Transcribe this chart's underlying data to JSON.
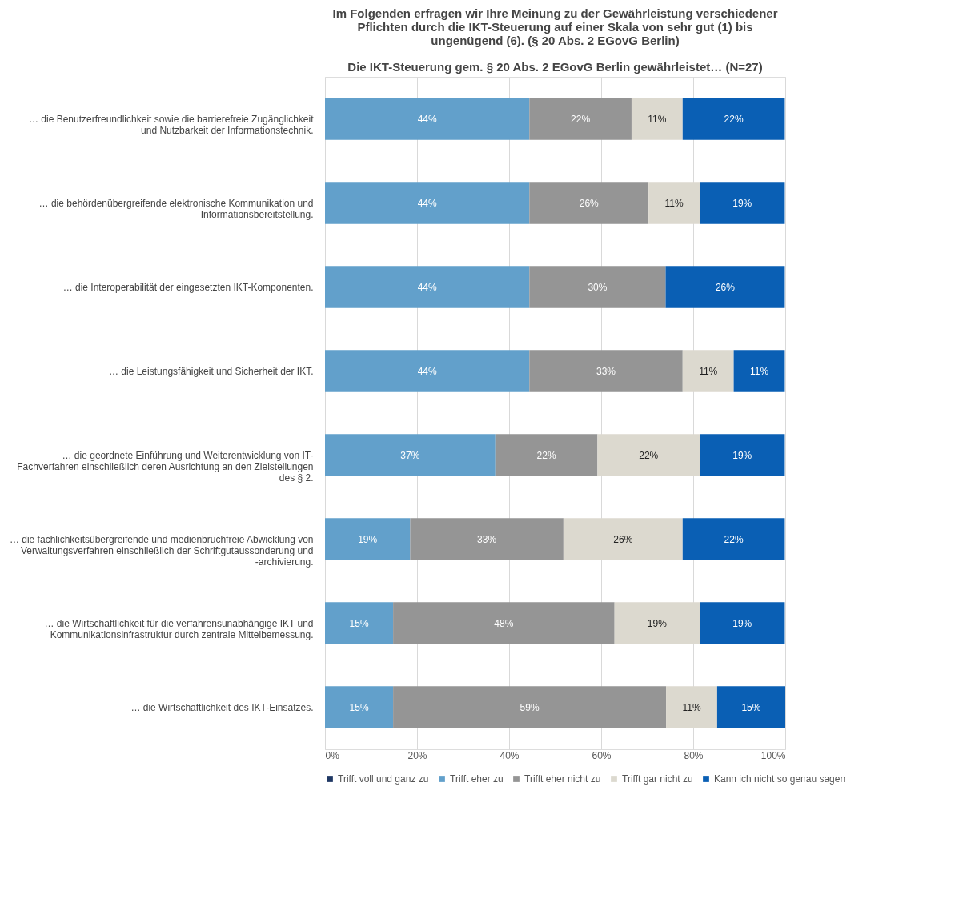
{
  "chart_data": {
    "type": "bar",
    "orientation": "horizontal",
    "stacked": true,
    "title": "Im Folgenden erfragen wir Ihre Meinung zu der Gewährleistung verschiedener Pflichten durch die IKT-Steuerung auf einer Skala von sehr gut (1) bis ungenügend (6). (§ 20 Abs. 2 EGovG Berlin)",
    "subtitle": "Die IKT-Steuerung gem. § 20 Abs. 2 EGovG Berlin gewährleistet… (N=27)",
    "categories": [
      "… die Benutzerfreundlichkeit sowie die barrierefreie Zugänglichkeit und Nutzbarkeit der Informationstechnik.",
      "… die behördenübergreifende elektronische Kommunikation und Informationsbereitstellung.",
      "… die Interoperabilität der eingesetzten IKT-Komponenten.",
      "… die Leistungsfähigkeit und Sicherheit der IKT.",
      "… die geordnete Einführung und Weiterentwicklung von IT-Fachverfahren einschließlich deren Ausrichtung an den Zielstellungen des § 2.",
      "… die fachlichkeitsübergreifende und medienbruchfreie Abwicklung von Verwaltungsverfahren einschließlich der Schriftgutaussonderung und -archivierung.",
      "… die Wirtschaftlichkeit für die verfahrensunabhängige IKT und Kommunikationsinfrastruktur durch zentrale Mittelbemessung.",
      "… die Wirtschaftlichkeit des IKT-Einsatzes."
    ],
    "series": [
      {
        "name": "Trifft voll und ganz zu",
        "color": "#1f3864",
        "values": [
          null,
          null,
          null,
          null,
          null,
          null,
          null,
          null
        ]
      },
      {
        "name": "Trifft eher zu",
        "color": "#62a0cb",
        "values": [
          44.4,
          44.4,
          44.4,
          44.4,
          37.0,
          18.5,
          14.8,
          14.8
        ],
        "value_labels": [
          "44%",
          "44%",
          "44%",
          "44%",
          "37%",
          "19%",
          "15%",
          "15%"
        ]
      },
      {
        "name": "Trifft eher nicht zu",
        "color": "#959595",
        "values": [
          22.2,
          25.9,
          29.6,
          33.3,
          22.2,
          33.3,
          48.1,
          59.3
        ],
        "value_labels": [
          "22%",
          "26%",
          "30%",
          "33%",
          "22%",
          "33%",
          "48%",
          "59%"
        ]
      },
      {
        "name": "Trifft gar nicht zu",
        "color": "#dcd9cf",
        "values": [
          11.1,
          11.1,
          null,
          11.1,
          22.2,
          25.9,
          18.5,
          11.1
        ],
        "value_labels": [
          "11%",
          "11%",
          null,
          "11%",
          "22%",
          "26%",
          "19%",
          "11%"
        ]
      },
      {
        "name": "Kann ich nicht so genau sagen",
        "color": "#0a5fb4",
        "values": [
          22.2,
          18.5,
          25.9,
          11.1,
          18.5,
          22.2,
          18.5,
          14.8
        ],
        "value_labels": [
          "22%",
          "19%",
          "26%",
          "11%",
          "19%",
          "22%",
          "19%",
          "15%"
        ]
      }
    ],
    "xlim": [
      0,
      100
    ],
    "xticks": [
      {
        "value": 0,
        "label": "0%"
      },
      {
        "value": 20,
        "label": "20%"
      },
      {
        "value": 40,
        "label": "40%"
      },
      {
        "value": 60,
        "label": "60%"
      },
      {
        "value": 80,
        "label": "80%"
      },
      {
        "value": 100,
        "label": "100%"
      }
    ],
    "grid": "x",
    "legend": "bottom"
  }
}
